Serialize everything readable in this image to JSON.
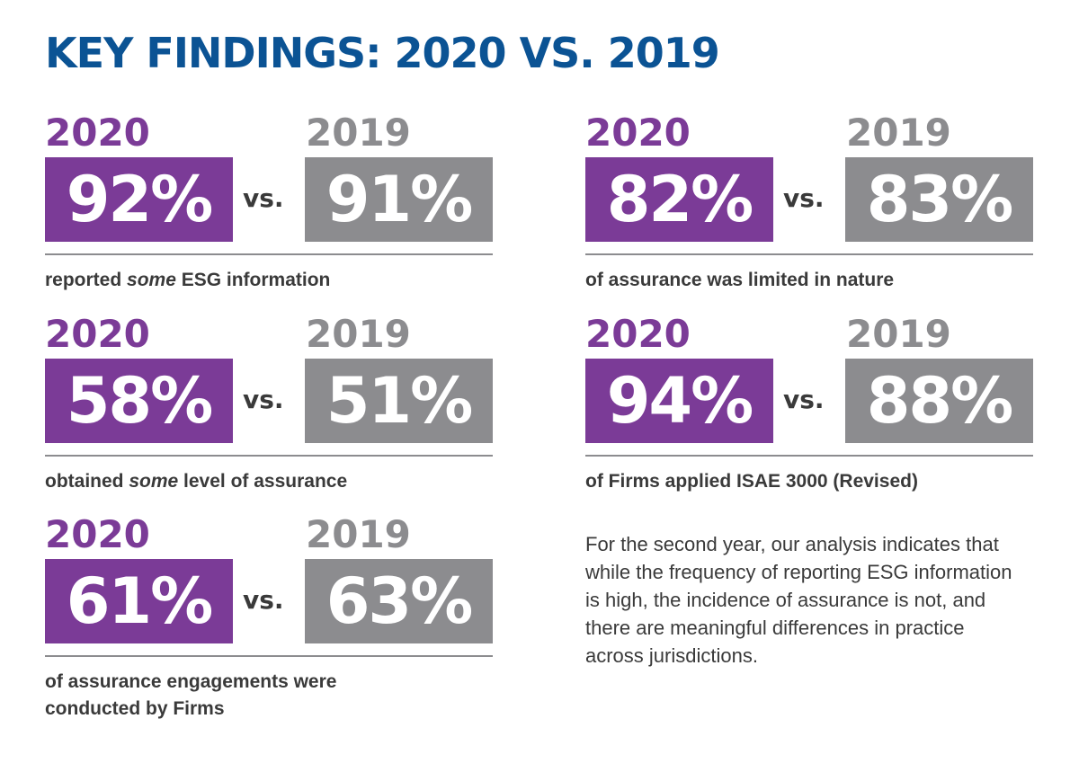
{
  "title": "KEY FINDINGS:  2020 VS. 2019",
  "vs_label": "vs.",
  "findings": [
    {
      "year_current": "2020",
      "year_previous": "2019",
      "value_current": "92%",
      "value_previous": "91%",
      "caption_before": "reported ",
      "caption_emphasis": "some",
      "caption_after": " ESG information"
    },
    {
      "year_current": "2020",
      "year_previous": "2019",
      "value_current": "82%",
      "value_previous": "83%",
      "caption_before": "of assurance was limited in nature",
      "caption_emphasis": "",
      "caption_after": ""
    },
    {
      "year_current": "2020",
      "year_previous": "2019",
      "value_current": "58%",
      "value_previous": "51%",
      "caption_before": "obtained ",
      "caption_emphasis": "some",
      "caption_after": " level of assurance"
    },
    {
      "year_current": "2020",
      "year_previous": "2019",
      "value_current": "94%",
      "value_previous": "88%",
      "caption_before": "of Firms applied ISAE 3000 (Revised)",
      "caption_emphasis": "",
      "caption_after": ""
    },
    {
      "year_current": "2020",
      "year_previous": "2019",
      "value_current": "61%",
      "value_previous": "63%",
      "caption_before": "of assurance engagements were conducted by Firms",
      "caption_emphasis": "",
      "caption_after": ""
    }
  ],
  "summary": "For the second year, our analysis indicates that while the frequency of reporting ESG information is high, the incidence of assurance is not, and there are meaningful differences in practice across jurisdictions.",
  "colors": {
    "title": "#0b5394",
    "current_year": "#7b3b97",
    "previous_year": "#8c8c8f",
    "text": "#3a3a3a"
  }
}
